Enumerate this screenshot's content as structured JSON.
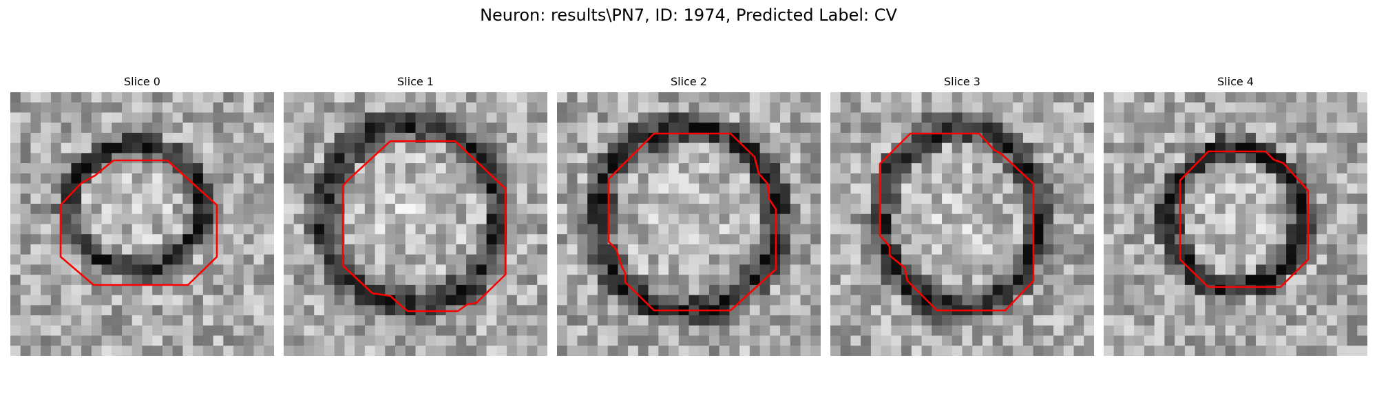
{
  "figure": {
    "title": "Neuron: results\\PN7, ID: 1974, Predicted Label: CV",
    "contour_color": "#ff0000",
    "image_colormap": "grayscale",
    "slices": [
      {
        "title": "Slice 0"
      },
      {
        "title": "Slice 1"
      },
      {
        "title": "Slice 2"
      },
      {
        "title": "Slice 3"
      },
      {
        "title": "Slice 4"
      }
    ]
  }
}
